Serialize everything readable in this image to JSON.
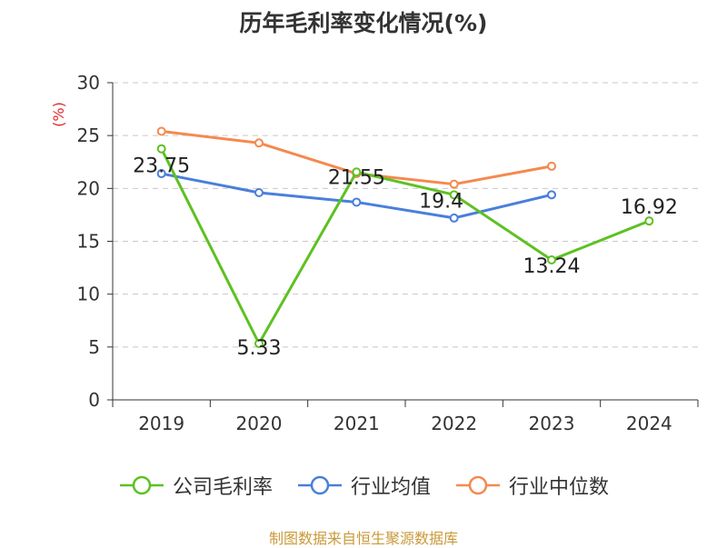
{
  "title": "历年毛利率变化情况(%)",
  "source": "制图数据来自恒生聚源数据库",
  "chart_data": {
    "type": "line",
    "title": "历年毛利率变化情况(%)",
    "ylabel": "(%)",
    "categories": [
      "2019",
      "2020",
      "2021",
      "2022",
      "2023",
      "2024"
    ],
    "ylim": [
      0,
      30
    ],
    "yticks": [
      0,
      5,
      10,
      15,
      20,
      25,
      30
    ],
    "grid": true,
    "legend_position": "bottom",
    "series": [
      {
        "name": "公司毛利率",
        "color": "#5dc122",
        "values": [
          23.75,
          5.33,
          21.55,
          19.4,
          13.24,
          16.92
        ],
        "labels": [
          "23.75",
          "5.33",
          "21.55",
          "19.4",
          "13.24",
          "16.92"
        ]
      },
      {
        "name": "行业均值",
        "color": "#4a7fdb",
        "values": [
          21.4,
          19.6,
          18.7,
          17.2,
          19.4,
          null
        ]
      },
      {
        "name": "行业中位数",
        "color": "#f5894f",
        "values": [
          25.4,
          24.3,
          21.4,
          20.4,
          22.1,
          null
        ]
      }
    ]
  }
}
